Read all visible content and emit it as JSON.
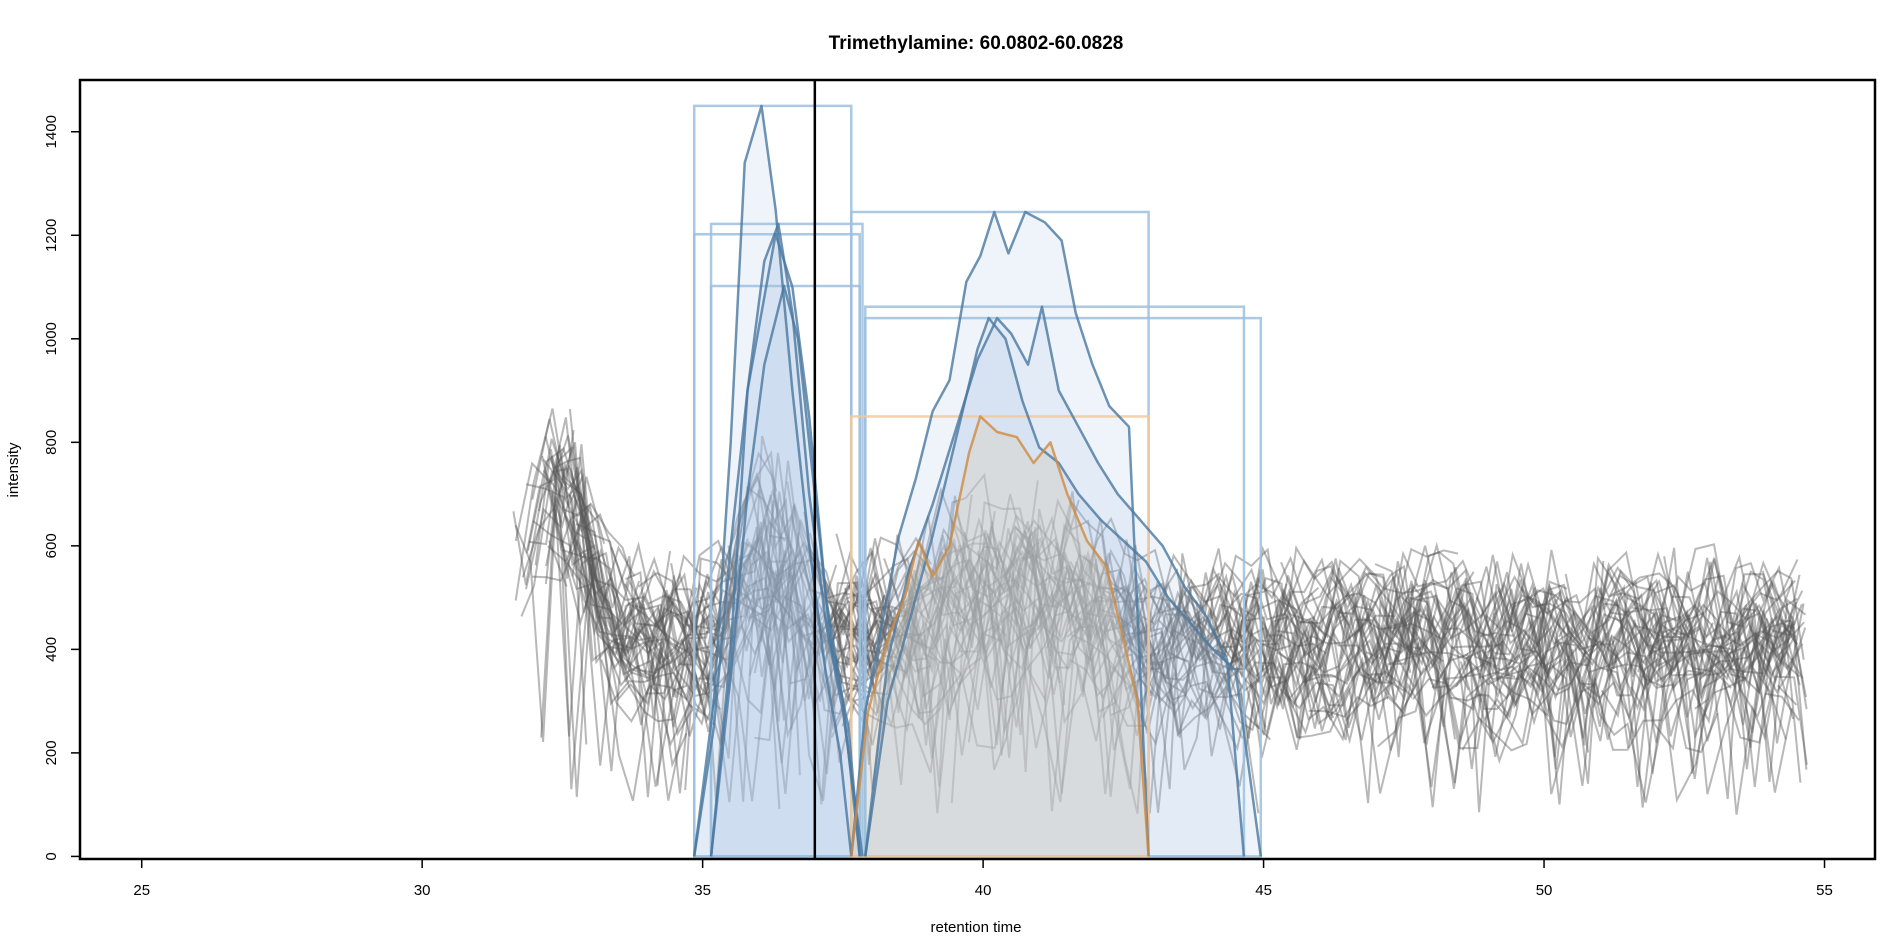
{
  "chart_data": {
    "type": "line",
    "title": "Trimethylamine: 60.0802-60.0828",
    "xlabel": "retention time",
    "ylabel": "intensity",
    "xlim": [
      23.9,
      55.9
    ],
    "ylim": [
      -5,
      1500
    ],
    "x_ticks": [
      25,
      30,
      35,
      40,
      45,
      50,
      55
    ],
    "y_ticks": [
      0,
      200,
      400,
      600,
      800,
      1000,
      1200,
      1400
    ],
    "grid": false,
    "legend": "none",
    "colors": {
      "background_trace": "#555555",
      "peak_blue_line": "#4a78a0",
      "peak_blue_fill": "#a9c4e2",
      "peak_blue_box": "#9cc0de",
      "peak_orange_line": "#d08a40",
      "peak_orange_box": "#f3c89a",
      "marker_line": "#000000"
    },
    "vertical_marker_x": 37.0,
    "peak_boxes": [
      {
        "xmin": 34.85,
        "xmax": 37.65,
        "ymax": 1450,
        "color": "blue"
      },
      {
        "xmin": 35.15,
        "xmax": 37.85,
        "ymax": 1222,
        "color": "blue"
      },
      {
        "xmin": 34.85,
        "xmax": 37.8,
        "ymax": 1202,
        "color": "blue"
      },
      {
        "xmin": 35.15,
        "xmax": 37.8,
        "ymax": 1102,
        "color": "blue"
      },
      {
        "xmin": 37.65,
        "xmax": 42.95,
        "ymax": 1245,
        "color": "blue"
      },
      {
        "xmin": 37.9,
        "xmax": 44.65,
        "ymax": 1062,
        "color": "blue"
      },
      {
        "xmin": 37.9,
        "xmax": 44.95,
        "ymax": 1040,
        "color": "blue"
      },
      {
        "xmin": 37.65,
        "xmax": 42.95,
        "ymax": 850,
        "color": "orange"
      }
    ],
    "peaks": [
      {
        "color": "blue",
        "points": [
          [
            34.85,
            0
          ],
          [
            35.2,
            300
          ],
          [
            35.5,
            800
          ],
          [
            35.75,
            1340
          ],
          [
            36.05,
            1450
          ],
          [
            36.3,
            1250
          ],
          [
            36.6,
            900
          ],
          [
            36.9,
            600
          ],
          [
            37.2,
            350
          ],
          [
            37.45,
            200
          ],
          [
            37.65,
            0
          ]
        ]
      },
      {
        "color": "blue",
        "points": [
          [
            35.15,
            0
          ],
          [
            35.5,
            400
          ],
          [
            35.8,
            900
          ],
          [
            36.1,
            1150
          ],
          [
            36.35,
            1222
          ],
          [
            36.6,
            1050
          ],
          [
            36.9,
            700
          ],
          [
            37.2,
            450
          ],
          [
            37.5,
            280
          ],
          [
            37.85,
            0
          ]
        ]
      },
      {
        "color": "blue",
        "points": [
          [
            34.85,
            0
          ],
          [
            35.2,
            250
          ],
          [
            35.5,
            600
          ],
          [
            35.8,
            900
          ],
          [
            36.05,
            1050
          ],
          [
            36.3,
            1202
          ],
          [
            36.6,
            1100
          ],
          [
            36.9,
            850
          ],
          [
            37.2,
            500
          ],
          [
            37.5,
            300
          ],
          [
            37.8,
            0
          ]
        ]
      },
      {
        "color": "blue",
        "points": [
          [
            35.15,
            0
          ],
          [
            35.5,
            350
          ],
          [
            35.8,
            700
          ],
          [
            36.1,
            950
          ],
          [
            36.45,
            1102
          ],
          [
            36.7,
            1000
          ],
          [
            37.0,
            700
          ],
          [
            37.3,
            400
          ],
          [
            37.6,
            250
          ],
          [
            37.8,
            0
          ]
        ]
      },
      {
        "color": "blue",
        "points": [
          [
            37.65,
            0
          ],
          [
            37.9,
            280
          ],
          [
            38.2,
            450
          ],
          [
            38.5,
            620
          ],
          [
            38.8,
            730
          ],
          [
            39.1,
            860
          ],
          [
            39.4,
            920
          ],
          [
            39.7,
            1110
          ],
          [
            39.95,
            1160
          ],
          [
            40.2,
            1245
          ],
          [
            40.45,
            1165
          ],
          [
            40.75,
            1245
          ],
          [
            41.1,
            1225
          ],
          [
            41.4,
            1190
          ],
          [
            41.65,
            1050
          ],
          [
            41.95,
            950
          ],
          [
            42.25,
            870
          ],
          [
            42.6,
            830
          ],
          [
            42.95,
            0
          ]
        ]
      },
      {
        "color": "blue",
        "points": [
          [
            37.9,
            0
          ],
          [
            38.3,
            380
          ],
          [
            38.7,
            560
          ],
          [
            39.1,
            680
          ],
          [
            39.5,
            820
          ],
          [
            39.9,
            960
          ],
          [
            40.25,
            1040
          ],
          [
            40.5,
            1010
          ],
          [
            40.8,
            950
          ],
          [
            41.05,
            1062
          ],
          [
            41.35,
            900
          ],
          [
            41.7,
            830
          ],
          [
            42.05,
            760
          ],
          [
            42.4,
            700
          ],
          [
            42.8,
            650
          ],
          [
            43.2,
            600
          ],
          [
            43.6,
            520
          ],
          [
            44.0,
            460
          ],
          [
            44.35,
            380
          ],
          [
            44.65,
            0
          ]
        ]
      },
      {
        "color": "blue",
        "points": [
          [
            37.9,
            0
          ],
          [
            38.3,
            300
          ],
          [
            38.7,
            460
          ],
          [
            39.1,
            620
          ],
          [
            39.5,
            800
          ],
          [
            39.9,
            980
          ],
          [
            40.1,
            1040
          ],
          [
            40.4,
            1000
          ],
          [
            40.7,
            880
          ],
          [
            41.0,
            790
          ],
          [
            41.35,
            760
          ],
          [
            41.7,
            700
          ],
          [
            42.1,
            650
          ],
          [
            42.5,
            610
          ],
          [
            42.9,
            570
          ],
          [
            43.3,
            500
          ],
          [
            43.7,
            450
          ],
          [
            44.1,
            400
          ],
          [
            44.5,
            360
          ],
          [
            44.95,
            0
          ]
        ]
      },
      {
        "color": "orange",
        "points": [
          [
            37.65,
            0
          ],
          [
            37.95,
            280
          ],
          [
            38.3,
            420
          ],
          [
            38.6,
            500
          ],
          [
            38.85,
            610
          ],
          [
            39.1,
            540
          ],
          [
            39.4,
            600
          ],
          [
            39.75,
            780
          ],
          [
            39.95,
            850
          ],
          [
            40.25,
            820
          ],
          [
            40.6,
            810
          ],
          [
            40.9,
            760
          ],
          [
            41.2,
            800
          ],
          [
            41.5,
            700
          ],
          [
            41.85,
            610
          ],
          [
            42.2,
            560
          ],
          [
            42.5,
            420
          ],
          [
            42.75,
            300
          ],
          [
            42.95,
            0
          ]
        ]
      }
    ],
    "background_traces": {
      "description": "many semi-transparent gray intensity traces",
      "x_range": [
        31.6,
        54.7
      ],
      "typical_level": 400,
      "early_peak": {
        "x": 32.4,
        "y_max": 800
      }
    }
  }
}
